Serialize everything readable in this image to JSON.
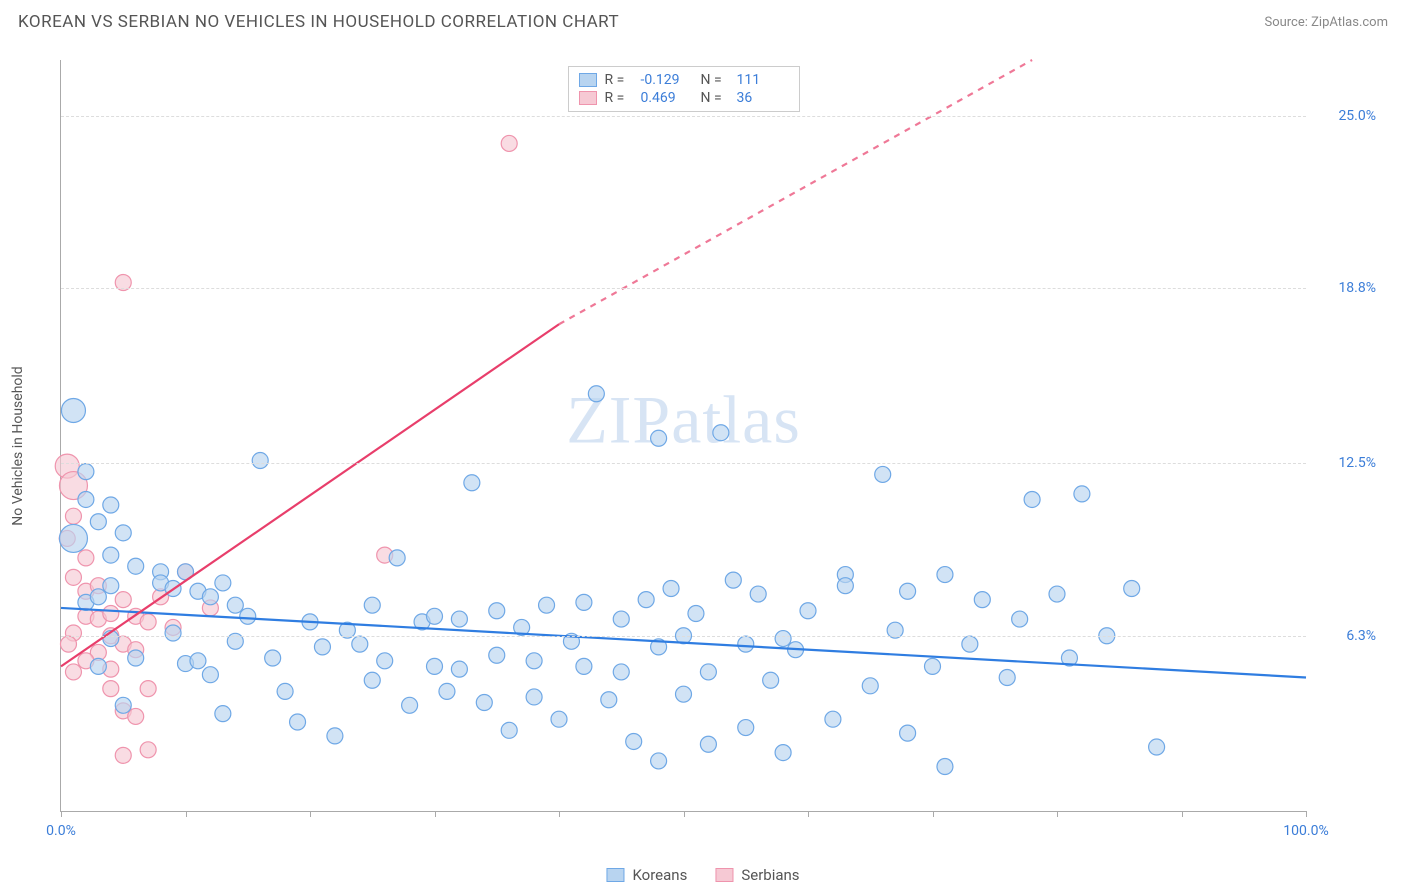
{
  "title": "KOREAN VS SERBIAN NO VEHICLES IN HOUSEHOLD CORRELATION CHART",
  "source_prefix": "Source: ",
  "source_link": "ZipAtlas.com",
  "ylabel": "No Vehicles in Household",
  "watermark": "ZIPatlas",
  "chart": {
    "type": "scatter",
    "xlim": [
      0,
      100
    ],
    "ylim": [
      0,
      27
    ],
    "x_ticks": [
      0,
      10,
      20,
      30,
      40,
      50,
      60,
      70,
      80,
      90,
      100
    ],
    "x_tick_labels_visible": {
      "0": "0.0%",
      "100": "100.0%"
    },
    "y_grid": [
      6.3,
      12.5,
      18.8,
      25.0
    ],
    "y_tick_labels": [
      "6.3%",
      "12.5%",
      "18.8%",
      "25.0%"
    ],
    "background_color": "#ffffff",
    "grid_color": "#dddddd",
    "axis_color": "#aaaaaa",
    "tick_label_color_x": "#3b7dd8",
    "tick_label_color_y": "#3b7dd8",
    "series": [
      {
        "name": "Koreans",
        "color_fill": "#b8d4f0",
        "color_stroke": "#6fa8e6",
        "line_color": "#2f7de1",
        "line_width": 2.2,
        "r_default": 8,
        "trend": {
          "x1": 0,
          "y1": 7.3,
          "x2": 100,
          "y2": 4.8
        },
        "stats": {
          "R": "-0.129",
          "N": "111"
        },
        "points": [
          [
            1,
            14.4,
            12
          ],
          [
            1,
            9.8,
            14
          ],
          [
            2,
            7.5
          ],
          [
            3,
            7.7
          ],
          [
            2,
            11.2
          ],
          [
            4,
            8.1
          ],
          [
            3,
            5.2
          ],
          [
            5,
            10.0
          ],
          [
            6,
            8.8
          ],
          [
            4,
            6.2
          ],
          [
            6,
            5.5
          ],
          [
            5,
            3.8
          ],
          [
            8,
            8.6
          ],
          [
            8,
            8.2
          ],
          [
            9,
            8.0
          ],
          [
            9,
            6.4
          ],
          [
            10,
            5.3
          ],
          [
            11,
            7.9
          ],
          [
            12,
            7.7
          ],
          [
            11,
            5.4
          ],
          [
            12,
            4.9
          ],
          [
            4,
            11.0
          ],
          [
            13,
            3.5
          ],
          [
            14,
            6.1
          ],
          [
            15,
            7.0
          ],
          [
            16,
            12.6
          ],
          [
            17,
            5.5
          ],
          [
            18,
            4.3
          ],
          [
            19,
            3.2
          ],
          [
            20,
            6.8
          ],
          [
            21,
            5.9
          ],
          [
            22,
            2.7
          ],
          [
            23,
            6.5
          ],
          [
            24,
            6.0
          ],
          [
            25,
            4.7
          ],
          [
            25,
            7.4
          ],
          [
            26,
            5.4
          ],
          [
            27,
            9.1
          ],
          [
            28,
            3.8
          ],
          [
            29,
            6.8
          ],
          [
            30,
            7.0
          ],
          [
            30,
            5.2
          ],
          [
            31,
            4.3
          ],
          [
            32,
            6.9
          ],
          [
            32,
            5.1
          ],
          [
            33,
            11.8
          ],
          [
            34,
            3.9
          ],
          [
            35,
            7.2
          ],
          [
            35,
            5.6
          ],
          [
            36,
            2.9
          ],
          [
            37,
            6.6
          ],
          [
            38,
            5.4
          ],
          [
            38,
            4.1
          ],
          [
            39,
            7.4
          ],
          [
            40,
            3.3
          ],
          [
            41,
            6.1
          ],
          [
            42,
            5.2
          ],
          [
            42,
            7.5
          ],
          [
            43,
            15.0
          ],
          [
            44,
            4.0
          ],
          [
            45,
            6.9
          ],
          [
            45,
            5.0
          ],
          [
            46,
            2.5
          ],
          [
            47,
            7.6
          ],
          [
            48,
            13.4
          ],
          [
            48,
            5.9
          ],
          [
            48,
            1.8
          ],
          [
            49,
            8.0
          ],
          [
            50,
            6.3
          ],
          [
            50,
            4.2
          ],
          [
            51,
            7.1
          ],
          [
            52,
            5.0
          ],
          [
            52,
            2.4
          ],
          [
            53,
            13.6
          ],
          [
            54,
            8.3
          ],
          [
            55,
            6.0
          ],
          [
            55,
            3.0
          ],
          [
            56,
            7.8
          ],
          [
            57,
            4.7
          ],
          [
            58,
            6.2
          ],
          [
            58,
            2.1
          ],
          [
            59,
            5.8
          ],
          [
            60,
            7.2
          ],
          [
            62,
            3.3
          ],
          [
            63,
            8.5
          ],
          [
            63,
            8.1
          ],
          [
            65,
            4.5
          ],
          [
            66,
            12.1
          ],
          [
            67,
            6.5
          ],
          [
            68,
            7.9
          ],
          [
            68,
            2.8
          ],
          [
            70,
            5.2
          ],
          [
            71,
            8.5
          ],
          [
            71,
            1.6
          ],
          [
            73,
            6.0
          ],
          [
            74,
            7.6
          ],
          [
            76,
            4.8
          ],
          [
            77,
            6.9
          ],
          [
            78,
            11.2
          ],
          [
            80,
            7.8
          ],
          [
            81,
            5.5
          ],
          [
            82,
            11.4
          ],
          [
            84,
            6.3
          ],
          [
            86,
            8.0
          ],
          [
            88,
            2.3
          ],
          [
            2,
            12.2
          ],
          [
            3,
            10.4
          ],
          [
            4,
            9.2
          ],
          [
            10,
            8.6
          ],
          [
            13,
            8.2
          ],
          [
            14,
            7.4
          ]
        ]
      },
      {
        "name": "Serbians",
        "color_fill": "#f6c9d4",
        "color_stroke": "#ef94ad",
        "line_color": "#e83e6b",
        "line_width": 2.2,
        "r_default": 8,
        "trend": {
          "x1": 0,
          "y1": 5.2,
          "x2": 40,
          "y2": 17.5,
          "x2_dash": 78,
          "y2_dash": 27
        },
        "stats": {
          "R": "0.469",
          "N": "36"
        },
        "points": [
          [
            0.5,
            12.4,
            12
          ],
          [
            1,
            11.7,
            14
          ],
          [
            1,
            10.6
          ],
          [
            0.5,
            9.8
          ],
          [
            2,
            9.1
          ],
          [
            1,
            8.4
          ],
          [
            2,
            7.9
          ],
          [
            3,
            8.1
          ],
          [
            2,
            7.0
          ],
          [
            3,
            6.9
          ],
          [
            1,
            6.4
          ],
          [
            0.6,
            6.0
          ],
          [
            4,
            7.1
          ],
          [
            4,
            6.3
          ],
          [
            5,
            7.6
          ],
          [
            3,
            5.7
          ],
          [
            2,
            5.4
          ],
          [
            1,
            5.0
          ],
          [
            4,
            5.1
          ],
          [
            5,
            6.0
          ],
          [
            6,
            7.0
          ],
          [
            6,
            5.8
          ],
          [
            7,
            6.8
          ],
          [
            7,
            4.4
          ],
          [
            5,
            3.6
          ],
          [
            5,
            2.0
          ],
          [
            8,
            7.7
          ],
          [
            9,
            6.6
          ],
          [
            10,
            8.6
          ],
          [
            12,
            7.3
          ],
          [
            6,
            3.4
          ],
          [
            5,
            19.0
          ],
          [
            7,
            2.2
          ],
          [
            26,
            9.2
          ],
          [
            36,
            24.0
          ],
          [
            4,
            4.4
          ]
        ]
      }
    ]
  },
  "stats_legend": {
    "value_color": "#3b7dd8",
    "rows": [
      {
        "swatch_fill": "#b8d4f0",
        "swatch_stroke": "#6fa8e6",
        "R": "-0.129",
        "N": "111"
      },
      {
        "swatch_fill": "#f6c9d4",
        "swatch_stroke": "#ef94ad",
        "R": "0.469",
        "N": "36"
      }
    ]
  },
  "bottom_legend": [
    {
      "swatch_fill": "#b8d4f0",
      "swatch_stroke": "#6fa8e6",
      "label": "Koreans"
    },
    {
      "swatch_fill": "#f6c9d4",
      "swatch_stroke": "#ef94ad",
      "label": "Serbians"
    }
  ]
}
